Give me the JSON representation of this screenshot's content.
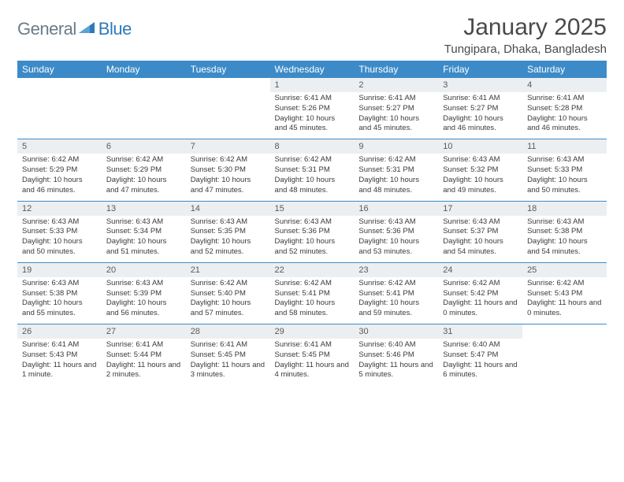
{
  "logo": {
    "part1": "General",
    "part2": "Blue"
  },
  "title": "January 2025",
  "location": "Tungipara, Dhaka, Bangladesh",
  "colors": {
    "header_bg": "#3c8bc8",
    "header_text": "#ffffff",
    "daynum_bg": "#eceff1",
    "logo_gray": "#6b7b88",
    "logo_blue": "#2f79b9",
    "text_body": "#3a3a3a",
    "separator": "#3c8bc8"
  },
  "typography": {
    "title_size_pt": 22,
    "location_size_pt": 11,
    "dow_size_pt": 9,
    "daynum_size_pt": 8,
    "detail_size_pt": 7
  },
  "days_of_week": [
    "Sunday",
    "Monday",
    "Tuesday",
    "Wednesday",
    "Thursday",
    "Friday",
    "Saturday"
  ],
  "weeks": [
    [
      null,
      null,
      null,
      {
        "n": "1",
        "sr": "6:41 AM",
        "ss": "5:26 PM",
        "dl": "10 hours and 45 minutes."
      },
      {
        "n": "2",
        "sr": "6:41 AM",
        "ss": "5:27 PM",
        "dl": "10 hours and 45 minutes."
      },
      {
        "n": "3",
        "sr": "6:41 AM",
        "ss": "5:27 PM",
        "dl": "10 hours and 46 minutes."
      },
      {
        "n": "4",
        "sr": "6:41 AM",
        "ss": "5:28 PM",
        "dl": "10 hours and 46 minutes."
      }
    ],
    [
      {
        "n": "5",
        "sr": "6:42 AM",
        "ss": "5:29 PM",
        "dl": "10 hours and 46 minutes."
      },
      {
        "n": "6",
        "sr": "6:42 AM",
        "ss": "5:29 PM",
        "dl": "10 hours and 47 minutes."
      },
      {
        "n": "7",
        "sr": "6:42 AM",
        "ss": "5:30 PM",
        "dl": "10 hours and 47 minutes."
      },
      {
        "n": "8",
        "sr": "6:42 AM",
        "ss": "5:31 PM",
        "dl": "10 hours and 48 minutes."
      },
      {
        "n": "9",
        "sr": "6:42 AM",
        "ss": "5:31 PM",
        "dl": "10 hours and 48 minutes."
      },
      {
        "n": "10",
        "sr": "6:43 AM",
        "ss": "5:32 PM",
        "dl": "10 hours and 49 minutes."
      },
      {
        "n": "11",
        "sr": "6:43 AM",
        "ss": "5:33 PM",
        "dl": "10 hours and 50 minutes."
      }
    ],
    [
      {
        "n": "12",
        "sr": "6:43 AM",
        "ss": "5:33 PM",
        "dl": "10 hours and 50 minutes."
      },
      {
        "n": "13",
        "sr": "6:43 AM",
        "ss": "5:34 PM",
        "dl": "10 hours and 51 minutes."
      },
      {
        "n": "14",
        "sr": "6:43 AM",
        "ss": "5:35 PM",
        "dl": "10 hours and 52 minutes."
      },
      {
        "n": "15",
        "sr": "6:43 AM",
        "ss": "5:36 PM",
        "dl": "10 hours and 52 minutes."
      },
      {
        "n": "16",
        "sr": "6:43 AM",
        "ss": "5:36 PM",
        "dl": "10 hours and 53 minutes."
      },
      {
        "n": "17",
        "sr": "6:43 AM",
        "ss": "5:37 PM",
        "dl": "10 hours and 54 minutes."
      },
      {
        "n": "18",
        "sr": "6:43 AM",
        "ss": "5:38 PM",
        "dl": "10 hours and 54 minutes."
      }
    ],
    [
      {
        "n": "19",
        "sr": "6:43 AM",
        "ss": "5:38 PM",
        "dl": "10 hours and 55 minutes."
      },
      {
        "n": "20",
        "sr": "6:43 AM",
        "ss": "5:39 PM",
        "dl": "10 hours and 56 minutes."
      },
      {
        "n": "21",
        "sr": "6:42 AM",
        "ss": "5:40 PM",
        "dl": "10 hours and 57 minutes."
      },
      {
        "n": "22",
        "sr": "6:42 AM",
        "ss": "5:41 PM",
        "dl": "10 hours and 58 minutes."
      },
      {
        "n": "23",
        "sr": "6:42 AM",
        "ss": "5:41 PM",
        "dl": "10 hours and 59 minutes."
      },
      {
        "n": "24",
        "sr": "6:42 AM",
        "ss": "5:42 PM",
        "dl": "11 hours and 0 minutes."
      },
      {
        "n": "25",
        "sr": "6:42 AM",
        "ss": "5:43 PM",
        "dl": "11 hours and 0 minutes."
      }
    ],
    [
      {
        "n": "26",
        "sr": "6:41 AM",
        "ss": "5:43 PM",
        "dl": "11 hours and 1 minute."
      },
      {
        "n": "27",
        "sr": "6:41 AM",
        "ss": "5:44 PM",
        "dl": "11 hours and 2 minutes."
      },
      {
        "n": "28",
        "sr": "6:41 AM",
        "ss": "5:45 PM",
        "dl": "11 hours and 3 minutes."
      },
      {
        "n": "29",
        "sr": "6:41 AM",
        "ss": "5:45 PM",
        "dl": "11 hours and 4 minutes."
      },
      {
        "n": "30",
        "sr": "6:40 AM",
        "ss": "5:46 PM",
        "dl": "11 hours and 5 minutes."
      },
      {
        "n": "31",
        "sr": "6:40 AM",
        "ss": "5:47 PM",
        "dl": "11 hours and 6 minutes."
      },
      null
    ]
  ],
  "labels": {
    "sunrise": "Sunrise:",
    "sunset": "Sunset:",
    "daylight": "Daylight:"
  }
}
